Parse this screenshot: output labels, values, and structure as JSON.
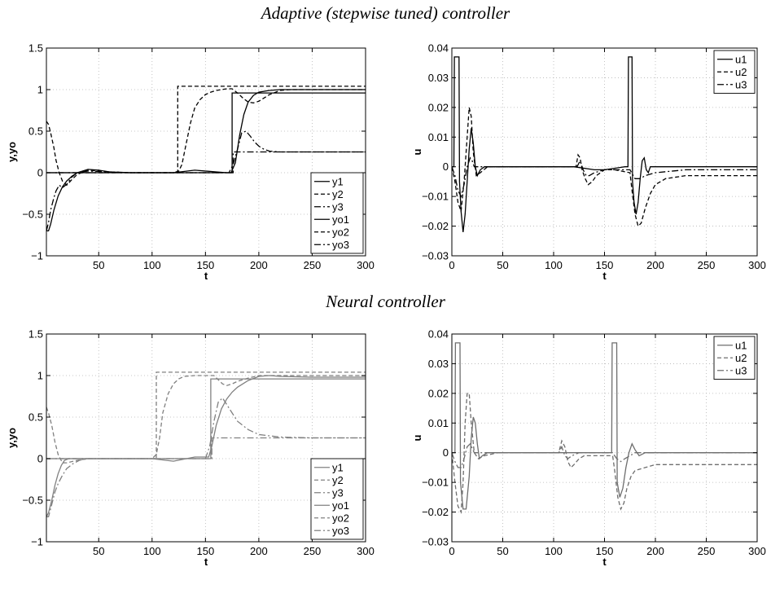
{
  "sections": [
    {
      "title": "Adaptive (stepwise tuned) controller"
    },
    {
      "title": "Neural controller"
    }
  ],
  "chart_data": [
    {
      "type": "line",
      "panel": "adaptive-outputs",
      "xlabel": "t",
      "ylabel": "y,yo",
      "xlim": [
        1,
        300
      ],
      "ylim": [
        -1,
        1.5
      ],
      "xticks": [
        50,
        100,
        150,
        200,
        250,
        300
      ],
      "yticks": [
        -1,
        -0.5,
        0,
        0.5,
        1,
        1.5
      ],
      "grid": true,
      "legend_position": "bottom-right",
      "color": "#000000",
      "series": [
        {
          "name": "y1",
          "dash": "",
          "x": [
            1,
            3,
            5,
            8,
            12,
            16,
            20,
            25,
            30,
            40,
            50,
            60,
            80,
            100,
            120,
            140,
            160,
            170,
            174,
            178,
            182,
            186,
            190,
            195,
            200,
            210,
            220,
            230,
            250,
            270,
            300
          ],
          "y": [
            -0.7,
            -0.7,
            -0.62,
            -0.45,
            -0.28,
            -0.17,
            -0.1,
            -0.04,
            0.0,
            0.04,
            0.03,
            0.01,
            0.0,
            0.0,
            0.0,
            0.03,
            0.01,
            0.0,
            0.0,
            0.12,
            0.45,
            0.7,
            0.85,
            0.93,
            0.97,
            0.99,
            1.0,
            1.0,
            1.0,
            1.0,
            1.0
          ]
        },
        {
          "name": "y2",
          "dash": "5,3",
          "x": [
            1,
            3,
            5,
            8,
            10,
            13,
            16,
            20,
            25,
            30,
            40,
            50,
            60,
            80,
            100,
            120,
            125,
            128,
            132,
            136,
            140,
            145,
            150,
            155,
            160,
            165,
            170,
            175,
            180,
            185,
            190,
            195,
            200,
            210,
            220,
            230,
            250,
            300
          ],
          "y": [
            0.62,
            0.58,
            0.48,
            0.3,
            0.15,
            0.0,
            -0.1,
            -0.15,
            -0.08,
            -0.02,
            0.03,
            0.02,
            0.01,
            0.0,
            0.0,
            0.0,
            0.02,
            0.1,
            0.35,
            0.6,
            0.78,
            0.88,
            0.94,
            0.97,
            0.99,
            1.0,
            1.01,
            1.01,
            0.96,
            0.9,
            0.85,
            0.84,
            0.86,
            0.94,
            0.99,
            1.0,
            1.0,
            1.0
          ]
        },
        {
          "name": "y3",
          "dash": "8,3,2,3",
          "x": [
            1,
            3,
            5,
            8,
            10,
            13,
            16,
            20,
            25,
            30,
            40,
            60,
            80,
            100,
            120,
            150,
            172,
            176,
            180,
            184,
            188,
            192,
            196,
            200,
            205,
            210,
            220,
            230,
            250,
            300
          ],
          "y": [
            -0.7,
            -0.6,
            -0.45,
            -0.3,
            -0.22,
            -0.15,
            -0.18,
            -0.14,
            -0.05,
            0.0,
            0.02,
            0.01,
            0.0,
            0.0,
            0.0,
            0.0,
            0.0,
            0.1,
            0.28,
            0.48,
            0.5,
            0.44,
            0.37,
            0.32,
            0.28,
            0.26,
            0.25,
            0.25,
            0.25,
            0.25
          ]
        },
        {
          "name": "yo1",
          "dash": "",
          "x": [
            1,
            175,
            175,
            300
          ],
          "y": [
            0,
            0,
            0.96,
            0.96
          ]
        },
        {
          "name": "yo2",
          "dash": "5,3",
          "x": [
            1,
            124,
            124,
            300
          ],
          "y": [
            0,
            0,
            1.04,
            1.04
          ]
        },
        {
          "name": "yo3",
          "dash": "8,3,2,3",
          "x": [
            1,
            176,
            176,
            300
          ],
          "y": [
            0,
            0,
            0.25,
            0.25
          ]
        }
      ]
    },
    {
      "type": "line",
      "panel": "adaptive-controls",
      "xlabel": "t",
      "ylabel": "u",
      "xlim": [
        0,
        300
      ],
      "ylim": [
        -0.03,
        0.04
      ],
      "xticks": [
        0,
        50,
        100,
        150,
        200,
        250,
        300
      ],
      "yticks": [
        -0.03,
        -0.02,
        -0.01,
        0,
        0.01,
        0.02,
        0.03,
        0.04
      ],
      "grid": true,
      "legend_position": "top-right",
      "color": "#000000",
      "series": [
        {
          "name": "u1",
          "dash": "",
          "x": [
            0,
            2,
            2.5,
            7,
            7.5,
            9,
            11,
            13,
            15,
            17,
            19,
            21,
            23,
            25,
            28,
            32,
            40,
            60,
            100,
            120,
            140,
            150,
            170,
            173,
            173.5,
            177,
            177.5,
            179,
            181,
            183,
            185,
            187,
            189,
            191,
            193,
            195,
            200,
            220,
            300
          ],
          "y": [
            0,
            0,
            0.037,
            0.037,
            -0.005,
            -0.015,
            -0.022,
            -0.016,
            -0.005,
            0.006,
            0.013,
            0.008,
            0.0,
            -0.003,
            -0.001,
            0.0,
            0.0,
            0.0,
            0.0,
            0.0,
            -0.001,
            -0.001,
            0.0,
            0.0,
            0.037,
            0.037,
            -0.005,
            -0.012,
            -0.016,
            -0.012,
            -0.004,
            0.002,
            0.003,
            -0.001,
            -0.002,
            0.0,
            0.0,
            0.0,
            0.0
          ]
        },
        {
          "name": "u2",
          "dash": "5,3",
          "x": [
            0,
            3,
            6,
            9,
            12,
            15,
            17,
            19,
            21,
            24,
            28,
            35,
            50,
            100,
            122,
            124,
            126,
            128,
            131,
            134,
            138,
            142,
            146,
            150,
            160,
            175,
            177,
            180,
            183,
            186,
            190,
            195,
            200,
            210,
            230,
            260,
            300
          ],
          "y": [
            0,
            -0.005,
            -0.012,
            -0.015,
            -0.005,
            0.01,
            0.02,
            0.017,
            0.005,
            -0.003,
            -0.002,
            0.0,
            0.0,
            0.0,
            0.0,
            0.004,
            0.003,
            -0.001,
            -0.004,
            -0.006,
            -0.005,
            -0.003,
            -0.002,
            -0.001,
            -0.001,
            -0.002,
            -0.008,
            -0.016,
            -0.02,
            -0.019,
            -0.014,
            -0.009,
            -0.006,
            -0.004,
            -0.003,
            -0.003,
            -0.003
          ]
        },
        {
          "name": "u3",
          "dash": "8,3,2,3",
          "x": [
            0,
            3,
            6,
            9,
            12,
            15,
            18,
            20,
            22,
            26,
            32,
            50,
            100,
            123,
            126,
            129,
            132,
            135,
            140,
            150,
            175,
            180,
            185,
            190,
            200,
            230,
            300
          ],
          "y": [
            0,
            -0.003,
            -0.008,
            -0.01,
            -0.006,
            0.0,
            0.003,
            0.002,
            0.0,
            0.0,
            0.0,
            0.0,
            0.0,
            0.0,
            0.002,
            -0.001,
            -0.003,
            -0.003,
            -0.002,
            -0.001,
            -0.001,
            -0.004,
            -0.004,
            -0.003,
            -0.002,
            -0.001,
            -0.001
          ]
        }
      ]
    },
    {
      "type": "line",
      "panel": "neural-outputs",
      "xlabel": "t",
      "ylabel": "y,yo",
      "xlim": [
        1,
        300
      ],
      "ylim": [
        -1,
        1.5
      ],
      "xticks": [
        50,
        100,
        150,
        200,
        250,
        300
      ],
      "yticks": [
        -1,
        -0.5,
        0,
        0.5,
        1,
        1.5
      ],
      "grid": true,
      "legend_position": "bottom-right",
      "color": "#808080",
      "series": [
        {
          "name": "y1",
          "dash": "",
          "x": [
            1,
            3,
            6,
            9,
            12,
            15,
            18,
            22,
            26,
            30,
            40,
            60,
            80,
            100,
            120,
            140,
            150,
            153,
            156,
            160,
            165,
            170,
            175,
            180,
            190,
            200,
            210,
            220,
            250,
            300
          ],
          "y": [
            -0.7,
            -0.65,
            -0.5,
            -0.32,
            -0.18,
            -0.08,
            -0.02,
            0.0,
            0.0,
            0.0,
            0.0,
            0.0,
            0.0,
            0.0,
            -0.03,
            0.02,
            0.02,
            0.02,
            0.15,
            0.4,
            0.6,
            0.72,
            0.8,
            0.86,
            0.94,
            0.99,
            1.0,
            0.99,
            0.98,
            0.98
          ]
        },
        {
          "name": "y2",
          "dash": "5,3",
          "x": [
            1,
            3,
            6,
            9,
            12,
            16,
            20,
            30,
            40,
            60,
            80,
            100,
            104,
            107,
            110,
            115,
            120,
            125,
            130,
            140,
            150,
            155,
            158,
            162,
            166,
            170,
            175,
            180,
            190,
            200,
            210,
            220,
            250,
            300
          ],
          "y": [
            0.62,
            0.55,
            0.4,
            0.2,
            0.05,
            -0.05,
            -0.05,
            -0.02,
            0.0,
            0.0,
            0.0,
            0.0,
            0.05,
            0.25,
            0.55,
            0.78,
            0.9,
            0.96,
            0.99,
            1.0,
            1.0,
            1.0,
            1.0,
            0.95,
            0.9,
            0.88,
            0.9,
            0.93,
            0.97,
            1.0,
            1.0,
            1.0,
            1.0,
            1.0
          ]
        },
        {
          "name": "y3",
          "dash": "8,3,2,3",
          "x": [
            1,
            3,
            6,
            9,
            12,
            16,
            20,
            26,
            32,
            40,
            60,
            80,
            100,
            150,
            154,
            158,
            162,
            166,
            170,
            175,
            180,
            190,
            200,
            220,
            250,
            300
          ],
          "y": [
            -0.7,
            -0.7,
            -0.55,
            -0.4,
            -0.3,
            -0.2,
            -0.12,
            -0.06,
            -0.02,
            0.0,
            0.0,
            0.0,
            0.0,
            0.0,
            0.15,
            0.45,
            0.68,
            0.73,
            0.65,
            0.55,
            0.45,
            0.35,
            0.29,
            0.26,
            0.25,
            0.25
          ]
        },
        {
          "name": "yo1",
          "dash": "",
          "x": [
            1,
            155,
            155,
            300
          ],
          "y": [
            0,
            0,
            0.96,
            0.96
          ]
        },
        {
          "name": "yo2",
          "dash": "5,3",
          "x": [
            1,
            104,
            104,
            300
          ],
          "y": [
            0,
            0,
            1.04,
            1.04
          ]
        },
        {
          "name": "yo3",
          "dash": "8,3,2,3",
          "x": [
            1,
            156,
            156,
            300
          ],
          "y": [
            0,
            0,
            0.25,
            0.25
          ]
        }
      ]
    },
    {
      "type": "line",
      "panel": "neural-controls",
      "xlabel": "t",
      "ylabel": "u",
      "xlim": [
        0,
        300
      ],
      "ylim": [
        -0.03,
        0.04
      ],
      "xticks": [
        0,
        50,
        100,
        150,
        200,
        250,
        300
      ],
      "yticks": [
        -0.03,
        -0.02,
        -0.01,
        0,
        0.01,
        0.02,
        0.03,
        0.04
      ],
      "grid": true,
      "legend_position": "top-right",
      "color": "#6e6e6e",
      "series": [
        {
          "name": "u1",
          "dash": "",
          "x": [
            0,
            3,
            3.5,
            8,
            8.5,
            11,
            14,
            17,
            19,
            21,
            23,
            25,
            27,
            30,
            35,
            45,
            100,
            110,
            130,
            150,
            157,
            157.5,
            162,
            162.5,
            165,
            168,
            171,
            174,
            177,
            180,
            184,
            190,
            200,
            300
          ],
          "y": [
            0,
            0,
            0.037,
            0.037,
            -0.01,
            -0.019,
            -0.019,
            -0.008,
            0.005,
            0.012,
            0.01,
            0.003,
            -0.002,
            -0.001,
            0.0,
            0.0,
            0.0,
            0.0,
            0.0,
            0.0,
            0.0,
            0.037,
            0.037,
            -0.01,
            -0.015,
            -0.012,
            -0.005,
            0.0,
            0.003,
            0.001,
            -0.001,
            0.0,
            0.0,
            0.0
          ]
        },
        {
          "name": "u2",
          "dash": "5,3",
          "x": [
            0,
            3,
            6,
            9,
            11,
            13,
            15,
            17,
            19,
            22,
            26,
            32,
            45,
            100,
            105,
            108,
            111,
            114,
            117,
            120,
            125,
            130,
            140,
            150,
            158,
            160,
            163,
            166,
            169,
            172,
            176,
            180,
            190,
            200,
            220,
            250,
            300
          ],
          "y": [
            0,
            -0.01,
            -0.018,
            -0.02,
            -0.01,
            0.01,
            0.02,
            0.02,
            0.01,
            0.0,
            -0.002,
            -0.001,
            0.0,
            0.0,
            0.0,
            0.004,
            0.002,
            -0.003,
            -0.005,
            -0.004,
            -0.002,
            -0.001,
            -0.001,
            -0.001,
            -0.001,
            -0.006,
            -0.015,
            -0.019,
            -0.017,
            -0.012,
            -0.008,
            -0.006,
            -0.005,
            -0.004,
            -0.004,
            -0.004,
            -0.004
          ]
        },
        {
          "name": "u3",
          "dash": "8,3,2,3",
          "x": [
            0,
            3,
            6,
            9,
            12,
            15,
            18,
            22,
            28,
            40,
            100,
            105,
            108,
            111,
            114,
            118,
            125,
            140,
            158,
            162,
            166,
            170,
            175,
            180,
            190,
            210,
            300
          ],
          "y": [
            0,
            -0.003,
            -0.005,
            -0.005,
            -0.002,
            0.002,
            0.003,
            0.0,
            0.0,
            0.0,
            0.0,
            0.0,
            0.002,
            -0.001,
            -0.002,
            -0.001,
            0.0,
            0.0,
            0.0,
            -0.002,
            -0.003,
            -0.002,
            -0.001,
            0.0,
            0.0,
            0.0,
            0.0
          ]
        }
      ]
    }
  ]
}
